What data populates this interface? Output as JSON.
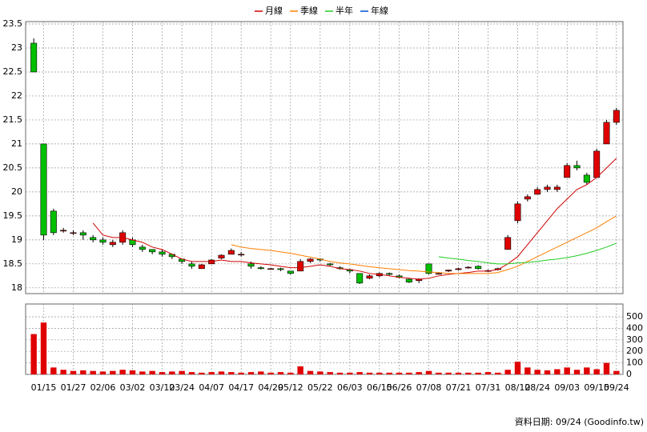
{
  "chart_data": {
    "type": "candlestick",
    "categories": [
      null,
      "01/15",
      null,
      null,
      "01/27",
      null,
      null,
      "02/06",
      null,
      null,
      "03/02",
      null,
      null,
      "03/12",
      null,
      "03/24",
      null,
      null,
      "04/07",
      null,
      null,
      "04/17",
      null,
      null,
      "04/29",
      null,
      "05/12",
      null,
      null,
      "05/22",
      null,
      null,
      "06/03",
      null,
      null,
      "06/15",
      null,
      "06/26",
      null,
      null,
      "07/08",
      null,
      null,
      "07/21",
      null,
      null,
      "07/31",
      null,
      null,
      "08/12",
      null,
      "08/24",
      null,
      null,
      "09/03",
      null,
      null,
      "09/15",
      null,
      "09/24"
    ],
    "open": [
      23.1,
      21.0,
      19.6,
      19.2,
      19.15,
      19.15,
      19.05,
      19.0,
      18.9,
      18.95,
      19.0,
      18.85,
      18.8,
      18.75,
      18.7,
      18.6,
      18.5,
      18.4,
      18.5,
      18.62,
      18.7,
      18.7,
      18.5,
      18.42,
      18.4,
      18.4,
      18.35,
      18.35,
      18.55,
      18.6,
      18.5,
      18.42,
      18.38,
      18.3,
      18.2,
      18.25,
      18.3,
      18.25,
      18.18,
      18.15,
      18.5,
      18.3,
      18.35,
      18.38,
      18.42,
      18.45,
      18.35,
      18.38,
      18.8,
      19.4,
      19.85,
      19.95,
      20.05,
      20.05,
      20.3,
      20.55,
      20.35,
      20.3,
      21.0,
      21.45
    ],
    "high": [
      23.2,
      21.0,
      19.65,
      19.25,
      19.2,
      19.2,
      19.1,
      19.05,
      19.0,
      19.2,
      19.05,
      18.9,
      18.8,
      18.8,
      18.7,
      18.6,
      18.55,
      18.5,
      18.6,
      18.7,
      18.82,
      18.75,
      18.55,
      18.45,
      18.42,
      18.42,
      18.35,
      18.6,
      18.62,
      18.62,
      18.52,
      18.45,
      18.4,
      18.3,
      18.28,
      18.32,
      18.32,
      18.28,
      18.2,
      18.2,
      18.5,
      18.32,
      18.38,
      18.42,
      18.45,
      18.47,
      18.38,
      18.42,
      19.1,
      19.8,
      19.95,
      20.1,
      20.15,
      20.15,
      20.6,
      20.65,
      20.4,
      20.9,
      21.5,
      21.75
    ],
    "low": [
      22.5,
      19.0,
      19.1,
      19.15,
      19.1,
      19.0,
      18.95,
      18.9,
      18.85,
      18.9,
      18.85,
      18.75,
      18.7,
      18.65,
      18.6,
      18.5,
      18.4,
      18.4,
      18.5,
      18.6,
      18.7,
      18.65,
      18.4,
      18.38,
      18.38,
      18.35,
      18.28,
      18.35,
      18.52,
      18.55,
      18.45,
      18.38,
      18.3,
      18.08,
      18.18,
      18.22,
      18.25,
      18.2,
      18.1,
      18.1,
      18.28,
      18.28,
      18.33,
      18.36,
      18.4,
      18.38,
      18.33,
      18.36,
      18.8,
      19.35,
      19.8,
      19.95,
      20.0,
      20.0,
      20.3,
      20.45,
      20.15,
      20.3,
      21.0,
      21.4
    ],
    "close": [
      22.5,
      19.1,
      19.15,
      19.2,
      19.15,
      19.1,
      19.0,
      18.95,
      18.95,
      19.15,
      18.9,
      18.8,
      18.75,
      18.7,
      18.65,
      18.55,
      18.45,
      18.48,
      18.58,
      18.68,
      18.78,
      18.7,
      18.45,
      18.4,
      18.4,
      18.38,
      18.3,
      18.55,
      18.6,
      18.58,
      18.48,
      18.4,
      18.35,
      18.1,
      18.25,
      18.3,
      18.28,
      18.22,
      18.12,
      18.18,
      18.3,
      18.3,
      18.37,
      18.4,
      18.43,
      18.4,
      18.36,
      18.4,
      19.05,
      19.75,
      19.9,
      20.05,
      20.1,
      20.1,
      20.55,
      20.5,
      20.2,
      20.85,
      21.45,
      21.7
    ],
    "volume": [
      350,
      450,
      60,
      40,
      30,
      35,
      30,
      25,
      30,
      40,
      35,
      25,
      30,
      20,
      25,
      30,
      20,
      15,
      20,
      25,
      20,
      15,
      20,
      25,
      15,
      20,
      15,
      70,
      30,
      25,
      20,
      15,
      15,
      20,
      15,
      15,
      15,
      15,
      15,
      20,
      30,
      15,
      15,
      15,
      15,
      15,
      20,
      15,
      40,
      110,
      60,
      40,
      35,
      45,
      60,
      40,
      60,
      45,
      100,
      30
    ],
    "up_color": "#e00000",
    "down_color": "#00c000",
    "volume_color": "#e00000",
    "series": [
      {
        "name": "月線",
        "color": "#d00000",
        "values": [
          null,
          null,
          null,
          null,
          null,
          null,
          19.35,
          19.1,
          19.05,
          19.05,
          19.0,
          18.95,
          18.85,
          18.8,
          18.7,
          18.6,
          18.55,
          18.55,
          18.55,
          18.58,
          18.55,
          18.55,
          18.52,
          18.5,
          18.48,
          18.45,
          18.42,
          18.42,
          18.45,
          18.48,
          18.45,
          18.4,
          18.38,
          18.35,
          18.3,
          18.28,
          18.25,
          18.22,
          18.2,
          18.18,
          18.2,
          18.25,
          18.28,
          18.3,
          18.32,
          18.35,
          18.35,
          18.38,
          18.5,
          18.65,
          18.9,
          19.15,
          19.4,
          19.65,
          19.85,
          20.05,
          20.15,
          20.3,
          20.5,
          20.7
        ]
      },
      {
        "name": "季線",
        "color": "#ff7f00",
        "values": [
          null,
          null,
          null,
          null,
          null,
          null,
          null,
          null,
          null,
          null,
          null,
          null,
          null,
          null,
          null,
          null,
          null,
          null,
          null,
          null,
          18.9,
          18.85,
          18.82,
          18.8,
          18.78,
          18.75,
          18.72,
          18.68,
          18.64,
          18.6,
          18.55,
          18.52,
          18.5,
          18.47,
          18.44,
          18.42,
          18.4,
          18.38,
          18.36,
          18.35,
          18.33,
          18.32,
          18.3,
          18.3,
          18.3,
          18.3,
          18.3,
          18.32,
          18.38,
          18.45,
          18.55,
          18.65,
          18.75,
          18.85,
          18.95,
          19.05,
          19.15,
          19.25,
          19.38,
          19.5
        ]
      },
      {
        "name": "半年",
        "color": "#22cc22",
        "values": [
          null,
          null,
          null,
          null,
          null,
          null,
          null,
          null,
          null,
          null,
          null,
          null,
          null,
          null,
          null,
          null,
          null,
          null,
          null,
          null,
          null,
          null,
          null,
          null,
          null,
          null,
          null,
          null,
          null,
          null,
          null,
          null,
          null,
          null,
          null,
          null,
          null,
          null,
          null,
          null,
          null,
          18.65,
          18.62,
          18.6,
          18.57,
          18.55,
          18.52,
          18.5,
          18.5,
          18.52,
          18.53,
          18.55,
          18.58,
          18.6,
          18.63,
          18.67,
          18.72,
          18.78,
          18.85,
          18.93
        ]
      },
      {
        "name": "年線",
        "color": "#0050d0",
        "values": [
          null,
          null,
          null,
          null,
          null,
          null,
          null,
          null,
          null,
          null,
          null,
          null,
          null,
          null,
          null,
          null,
          null,
          null,
          null,
          null,
          null,
          null,
          null,
          null,
          null,
          null,
          null,
          null,
          null,
          null,
          null,
          null,
          null,
          null,
          null,
          null,
          null,
          null,
          null,
          null,
          null,
          null,
          null,
          null,
          null,
          null,
          null,
          null,
          null,
          null,
          null,
          null,
          null,
          null,
          null,
          null,
          null,
          null,
          null,
          null
        ]
      }
    ],
    "ylim": [
      17.88,
      23.55
    ],
    "yticks": [
      18,
      18.5,
      19,
      19.5,
      20,
      20.5,
      21,
      21.5,
      22,
      22.5,
      23,
      23.5
    ],
    "y2lim": [
      0,
      611
    ],
    "y2ticks": [
      0,
      100,
      200,
      300,
      400,
      500
    ],
    "grid": true,
    "footnote": "資料日期: 09/24 (Goodinfo.tw)"
  }
}
